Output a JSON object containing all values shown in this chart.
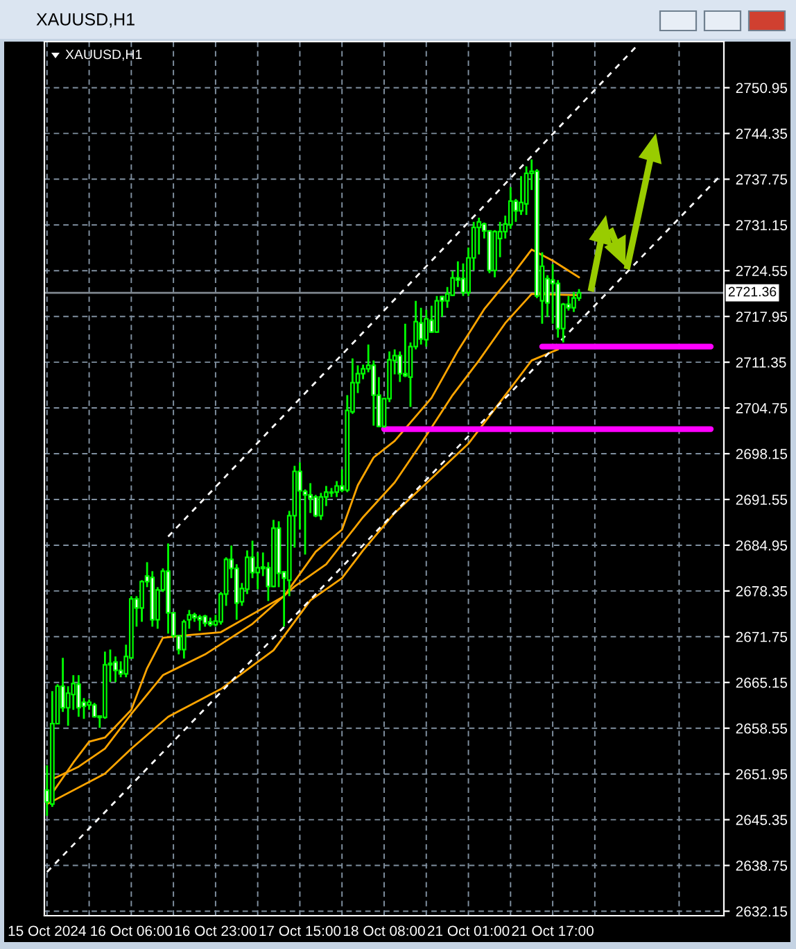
{
  "chart_data": {
    "type": "candlestick",
    "title": "XAUUSD,H1",
    "subtitle": "XAUUSD,H1",
    "categories": [
      "15 Oct 2024",
      null,
      null,
      null,
      null,
      null,
      null,
      null,
      null,
      null,
      null,
      null,
      null,
      null,
      null,
      null,
      "16 Oct 06:00",
      null,
      null,
      null,
      null,
      null,
      null,
      null,
      null,
      null,
      null,
      null,
      null,
      null,
      null,
      null,
      "16 Oct 23:00",
      null,
      null,
      null,
      null,
      null,
      null,
      null,
      null,
      null,
      null,
      null,
      null,
      null,
      null,
      null,
      "17 Oct 15:00",
      null,
      null,
      null,
      null,
      null,
      null,
      null,
      null,
      null,
      null,
      null,
      null,
      null,
      null,
      null,
      "18 Oct 08:00",
      null,
      null,
      null,
      null,
      null,
      null,
      null,
      null,
      null,
      null,
      null,
      null,
      null,
      null,
      null,
      "21 Oct 01:00",
      null,
      null,
      null,
      null,
      null,
      null,
      null,
      null,
      null,
      null,
      null,
      null,
      null,
      null,
      null,
      "21 Oct 17:00",
      null,
      null,
      null,
      null,
      null,
      null,
      null,
      null,
      null,
      null,
      null,
      null,
      null,
      null,
      null,
      null,
      null,
      null,
      null,
      null,
      null,
      null,
      null,
      null,
      null,
      null,
      null,
      null,
      null,
      null,
      null,
      null
    ],
    "ohlc": [
      [
        2649.6,
        2653.2,
        2645.9,
        2647.9
      ],
      [
        2647.6,
        2663.9,
        2647.2,
        2659.2
      ],
      [
        2659.2,
        2664.9,
        2659.2,
        2664.6
      ],
      [
        2664.6,
        2668.7,
        2660.9,
        2661.5
      ],
      [
        2661.5,
        2664.6,
        2658.9,
        2663.6
      ],
      [
        2663.4,
        2666.2,
        2661.2,
        2665.0
      ],
      [
        2664.9,
        2666.2,
        2660.2,
        2661.5
      ],
      [
        2662.3,
        2662.9,
        2659.9,
        2661.7
      ],
      [
        2661.9,
        2662.7,
        2661.2,
        2662.3
      ],
      [
        2661.9,
        2662.2,
        2660.1,
        2660.2
      ],
      [
        2660.3,
        2660.3,
        2658.6,
        2660.1
      ],
      [
        2660.1,
        2669.6,
        2659.9,
        2667.7
      ],
      [
        2667.7,
        2669.9,
        2665.2,
        2667.9
      ],
      [
        2668.1,
        2668.9,
        2665.2,
        2666.9
      ],
      [
        2666.9,
        2668.2,
        2665.9,
        2666.4
      ],
      [
        2666.4,
        2670.6,
        2665.9,
        2668.9
      ],
      [
        2668.7,
        2677.6,
        2668.6,
        2677.2
      ],
      [
        2677.2,
        2677.6,
        2673.2,
        2675.9
      ],
      [
        2675.9,
        2679.9,
        2673.9,
        2679.7
      ],
      [
        2680.5,
        2682.5,
        2678.9,
        2679.7
      ],
      [
        2680.3,
        2681.2,
        2673.2,
        2674.2
      ],
      [
        2674.2,
        2678.9,
        2672.9,
        2678.5
      ],
      [
        2678.5,
        2681.6,
        2678.2,
        2681.2
      ],
      [
        2681.2,
        2685.2,
        2672.2,
        2675.2
      ],
      [
        2675.2,
        2675.2,
        2671.6,
        2671.9
      ],
      [
        2671.9,
        2671.9,
        2669.2,
        2669.9
      ],
      [
        2669.9,
        2674.2,
        2668.6,
        2673.9
      ],
      [
        2674.2,
        2675.6,
        2672.9,
        2674.9
      ],
      [
        2674.9,
        2675.2,
        2673.9,
        2674.5
      ],
      [
        2674.6,
        2674.9,
        2672.6,
        2674.2
      ],
      [
        2674.7,
        2674.9,
        2673.2,
        2673.7
      ],
      [
        2673.9,
        2674.5,
        2673.2,
        2673.5
      ],
      [
        2673.5,
        2674.9,
        2673.2,
        2674.0
      ],
      [
        2673.9,
        2678.2,
        2673.5,
        2677.9
      ],
      [
        2677.9,
        2683.2,
        2676.2,
        2682.9
      ],
      [
        2682.9,
        2684.9,
        2680.2,
        2681.6
      ],
      [
        2681.6,
        2682.2,
        2674.2,
        2676.6
      ],
      [
        2676.8,
        2679.5,
        2676.2,
        2678.7
      ],
      [
        2678.6,
        2684.2,
        2677.9,
        2683.2
      ],
      [
        2683.2,
        2685.6,
        2680.2,
        2681.0
      ],
      [
        2681.0,
        2683.9,
        2678.6,
        2681.7
      ],
      [
        2681.8,
        2683.9,
        2680.5,
        2681.6
      ],
      [
        2681.7,
        2682.5,
        2676.9,
        2679.0
      ],
      [
        2679.0,
        2688.6,
        2678.9,
        2687.4
      ],
      [
        2687.4,
        2688.4,
        2678.9,
        2680.9
      ],
      [
        2681.1,
        2681.2,
        2673.2,
        2680.2
      ],
      [
        2679.9,
        2689.9,
        2677.6,
        2689.2
      ],
      [
        2689.2,
        2696.4,
        2684.6,
        2695.6
      ],
      [
        2695.6,
        2696.9,
        2687.2,
        2692.8
      ],
      [
        2692.7,
        2693.0,
        2683.6,
        2692.2
      ],
      [
        2692.2,
        2693.9,
        2689.6,
        2691.7
      ],
      [
        2691.9,
        2692.2,
        2689.0,
        2689.2
      ],
      [
        2689.2,
        2692.5,
        2688.6,
        2691.9
      ],
      [
        2691.9,
        2693.5,
        2690.6,
        2692.6
      ],
      [
        2692.6,
        2693.2,
        2691.9,
        2692.5
      ],
      [
        2692.6,
        2694.2,
        2691.9,
        2693.5
      ],
      [
        2693.5,
        2695.9,
        2692.6,
        2692.9
      ],
      [
        2692.9,
        2706.6,
        2692.6,
        2704.4
      ],
      [
        2704.2,
        2711.9,
        2703.9,
        2708.4
      ],
      [
        2708.4,
        2710.9,
        2706.9,
        2709.7
      ],
      [
        2709.7,
        2711.0,
        2708.9,
        2710.4
      ],
      [
        2710.4,
        2713.9,
        2709.9,
        2710.9
      ],
      [
        2710.9,
        2711.6,
        2702.2,
        2706.6
      ],
      [
        2706.6,
        2709.2,
        2702.0,
        2702.1
      ],
      [
        2702.1,
        2706.2,
        2701.9,
        2706.1
      ],
      [
        2706.1,
        2712.9,
        2705.6,
        2711.7
      ],
      [
        2711.6,
        2713.2,
        2709.6,
        2712.3
      ],
      [
        2712.3,
        2712.9,
        2708.5,
        2709.7
      ],
      [
        2709.7,
        2716.9,
        2709.2,
        2709.4
      ],
      [
        2709.2,
        2714.2,
        2704.9,
        2713.6
      ],
      [
        2713.6,
        2720.2,
        2713.2,
        2717.2
      ],
      [
        2717.0,
        2719.2,
        2713.9,
        2714.7
      ],
      [
        2714.6,
        2718.9,
        2713.6,
        2717.6
      ],
      [
        2717.4,
        2719.5,
        2715.6,
        2715.7
      ],
      [
        2715.7,
        2720.9,
        2715.6,
        2720.2
      ],
      [
        2720.8,
        2720.9,
        2717.9,
        2720.2
      ],
      [
        2720.2,
        2722.2,
        2719.2,
        2721.2
      ],
      [
        2721.0,
        2724.5,
        2720.9,
        2723.5
      ],
      [
        2723.5,
        2725.9,
        2722.2,
        2723.2
      ],
      [
        2723.4,
        2725.6,
        2720.9,
        2721.4
      ],
      [
        2721.4,
        2727.9,
        2720.9,
        2726.4
      ],
      [
        2726.4,
        2731.6,
        2724.6,
        2730.8
      ],
      [
        2730.8,
        2732.2,
        2726.9,
        2731.6
      ],
      [
        2731.3,
        2731.5,
        2729.2,
        2730.3
      ],
      [
        2730.3,
        2730.3,
        2724.2,
        2724.6
      ],
      [
        2724.6,
        2730.4,
        2723.6,
        2730.2
      ],
      [
        2729.2,
        2731.6,
        2726.5,
        2730.2
      ],
      [
        2730.2,
        2732.5,
        2729.2,
        2731.3
      ],
      [
        2731.2,
        2736.6,
        2730.6,
        2734.6
      ],
      [
        2734.6,
        2734.9,
        2731.6,
        2733.2
      ],
      [
        2733.2,
        2738.2,
        2732.6,
        2734.4
      ],
      [
        2734.2,
        2739.6,
        2732.6,
        2738.6
      ],
      [
        2738.6,
        2740.6,
        2736.2,
        2738.9
      ],
      [
        2738.9,
        2739.2,
        2720.6,
        2720.9
      ],
      [
        2720.2,
        2727.2,
        2716.9,
        2725.2
      ],
      [
        2723.4,
        2723.9,
        2717.9,
        2719.9
      ],
      [
        2723.2,
        2725.5,
        2716.9,
        2722.7
      ],
      [
        2722.7,
        2723.2,
        2714.9,
        2716.2
      ],
      [
        2716.2,
        2719.9,
        2714.2,
        2719.7
      ],
      [
        2719.7,
        2720.9,
        2718.8,
        2719.2
      ],
      [
        2719.2,
        2721.5,
        2718.6,
        2720.6
      ],
      [
        2720.6,
        2721.9,
        2720.2,
        2721.36
      ],
      null,
      null,
      null,
      null,
      null,
      null,
      null,
      null,
      null,
      null,
      null,
      null,
      null,
      null,
      null,
      null,
      null,
      null,
      null,
      null,
      null,
      null,
      null,
      null,
      null,
      null,
      null
    ],
    "series": [
      {
        "type": "line",
        "color": "#ffa500",
        "values": [
          null,
          2649.2,
          null,
          null,
          null,
          2653.6,
          null,
          null,
          2656.6,
          null,
          null,
          2657.2,
          null,
          null,
          null,
          null,
          2661.2,
          null,
          null,
          2667.2,
          null,
          null,
          2671.6,
          null,
          null,
          null,
          null,
          2672.0,
          null,
          null,
          null,
          null,
          null,
          2672.4,
          null,
          null,
          null,
          null,
          null,
          null,
          null,
          null,
          null,
          null,
          null,
          2677.6,
          null,
          null,
          null,
          null,
          null,
          2684.0,
          null,
          null,
          null,
          null,
          2687.2,
          null,
          null,
          2693.6,
          null,
          null,
          2697.6,
          null,
          null,
          null,
          2700.0,
          null,
          null,
          null,
          null,
          null,
          null,
          2706.2,
          null,
          null,
          null,
          null,
          2713.0,
          null,
          null,
          null,
          null,
          2719.0,
          null,
          null,
          null,
          null,
          2723.6,
          null,
          null,
          null,
          2727.6,
          null,
          null,
          null,
          2726.0,
          null,
          null,
          null,
          null,
          2723.6,
          null,
          null,
          null,
          null,
          null,
          null,
          null,
          null,
          null,
          null,
          null,
          null,
          null,
          null,
          null,
          null,
          null,
          null,
          null,
          null,
          null,
          null,
          null,
          null,
          null,
          null,
          null
        ]
      },
      {
        "type": "line",
        "color": "#ffa500",
        "values": [
          null,
          2651.2,
          null,
          null,
          null,
          null,
          2653.0,
          null,
          null,
          null,
          null,
          2655.6,
          null,
          null,
          null,
          null,
          2660.6,
          null,
          null,
          null,
          null,
          null,
          2666.2,
          null,
          null,
          null,
          null,
          null,
          null,
          null,
          2669.2,
          null,
          null,
          null,
          null,
          null,
          null,
          null,
          null,
          2673.6,
          null,
          null,
          null,
          null,
          null,
          null,
          null,
          2679.0,
          null,
          null,
          null,
          null,
          null,
          2682.2,
          null,
          null,
          null,
          null,
          null,
          null,
          2689.0,
          null,
          null,
          null,
          null,
          null,
          2694.0,
          null,
          null,
          null,
          null,
          2699.6,
          null,
          null,
          null,
          null,
          null,
          2706.6,
          null,
          null,
          null,
          null,
          2711.6,
          null,
          null,
          null,
          null,
          2717.0,
          null,
          null,
          null,
          null,
          2721.2,
          null,
          null,
          null,
          null,
          null,
          null,
          null,
          null,
          2721.0,
          null,
          null,
          null,
          null,
          null,
          null,
          null,
          null,
          null,
          null,
          null,
          null,
          null,
          null,
          null,
          null,
          null,
          null,
          null,
          null,
          null,
          null,
          null,
          null,
          null,
          null,
          null
        ]
      },
      {
        "type": "line",
        "color": "#ffa500",
        "values": [
          2647.6,
          null,
          null,
          null,
          null,
          null,
          null,
          null,
          null,
          null,
          null,
          2652.0,
          null,
          null,
          null,
          null,
          2655.6,
          null,
          null,
          null,
          null,
          null,
          null,
          2660.2,
          null,
          null,
          null,
          null,
          null,
          null,
          null,
          null,
          null,
          2664.2,
          null,
          null,
          null,
          null,
          null,
          null,
          null,
          null,
          null,
          2669.8,
          null,
          null,
          null,
          null,
          null,
          null,
          2677.0,
          null,
          null,
          null,
          null,
          null,
          2680.2,
          null,
          null,
          null,
          2684.2,
          null,
          null,
          null,
          null,
          null,
          2689.6,
          null,
          null,
          null,
          null,
          null,
          null,
          null,
          null,
          null,
          null,
          null,
          null,
          null,
          2699.6,
          null,
          null,
          null,
          null,
          null,
          2705.6,
          null,
          null,
          null,
          null,
          null,
          2711.6,
          null,
          null,
          null,
          null,
          2713.2,
          null,
          null,
          null,
          null,
          null,
          null,
          null,
          null,
          null,
          null,
          null,
          null,
          null,
          null,
          null,
          null,
          null,
          null,
          null,
          null,
          null,
          null,
          null,
          null,
          null,
          null,
          null,
          null,
          null,
          null,
          null
        ]
      },
      {
        "type": "line",
        "color": "#ffffff",
        "line_style": "dashed",
        "values": [
          null,
          null,
          null,
          null,
          null,
          null,
          null,
          null,
          null,
          null,
          null,
          null,
          null,
          null,
          null,
          null,
          null,
          null,
          null,
          null,
          null,
          null,
          null,
          2686.2,
          null,
          null,
          null,
          null,
          null,
          null,
          null,
          null,
          null,
          null,
          null,
          null,
          null,
          null,
          null,
          null,
          null,
          null,
          null,
          null,
          null,
          null,
          null,
          null,
          null,
          null,
          null,
          null,
          null,
          null,
          null,
          null,
          null,
          null,
          null,
          null,
          null,
          null,
          null,
          null,
          null,
          null,
          null,
          null,
          null,
          null,
          null,
          null,
          null,
          null,
          null,
          null,
          null,
          null,
          null,
          null,
          null,
          null,
          null,
          null,
          null,
          null,
          null,
          null,
          null,
          null,
          null,
          null,
          null,
          null,
          null,
          null,
          null,
          null,
          null,
          null,
          null,
          null,
          null,
          null,
          null,
          null,
          null,
          null,
          null,
          null,
          null,
          null,
          2757.0,
          null,
          null,
          null,
          null,
          null,
          null,
          null,
          null,
          null,
          null,
          null,
          null,
          null,
          null,
          null,
          null
        ]
      },
      {
        "type": "line",
        "color": "#ffffff",
        "line_style": "dashed",
        "values": [
          2637.8,
          null,
          null,
          null,
          null,
          null,
          null,
          null,
          null,
          null,
          null,
          null,
          null,
          null,
          null,
          null,
          null,
          null,
          null,
          null,
          null,
          null,
          null,
          null,
          null,
          null,
          null,
          null,
          null,
          null,
          null,
          null,
          null,
          null,
          null,
          null,
          null,
          null,
          null,
          null,
          null,
          null,
          null,
          null,
          null,
          null,
          null,
          null,
          null,
          null,
          null,
          null,
          null,
          null,
          null,
          null,
          null,
          null,
          null,
          null,
          null,
          null,
          null,
          null,
          null,
          null,
          null,
          null,
          null,
          null,
          null,
          null,
          null,
          null,
          null,
          null,
          null,
          null,
          null,
          null,
          null,
          null,
          null,
          null,
          null,
          null,
          null,
          null,
          null,
          null,
          null,
          null,
          null,
          null,
          null,
          null,
          null,
          null,
          null,
          null,
          null,
          null,
          null,
          null,
          null,
          null,
          null,
          null,
          null,
          null,
          null,
          null,
          null,
          null,
          null,
          null,
          null,
          null,
          null,
          null,
          null,
          null,
          null,
          null,
          null,
          null,
          null,
          null,
          2738.4
        ]
      },
      {
        "type": "line",
        "color": "#ff00ff",
        "values": [
          null,
          null,
          null,
          null,
          null,
          null,
          null,
          null,
          null,
          null,
          null,
          null,
          null,
          null,
          null,
          null,
          null,
          null,
          null,
          null,
          null,
          null,
          null,
          null,
          null,
          null,
          null,
          null,
          null,
          null,
          null,
          null,
          null,
          null,
          null,
          null,
          null,
          null,
          null,
          null,
          null,
          null,
          null,
          null,
          null,
          null,
          null,
          null,
          null,
          null,
          null,
          null,
          null,
          null,
          null,
          null,
          null,
          null,
          null,
          null,
          null,
          null,
          null,
          null,
          2701.7,
          null,
          null,
          null,
          null,
          null,
          null,
          null,
          null,
          null,
          null,
          null,
          null,
          null,
          null,
          null,
          null,
          null,
          null,
          null,
          null,
          null,
          null,
          null,
          null,
          null,
          null,
          null,
          null,
          null,
          null,
          null,
          null,
          null,
          null,
          null,
          null,
          null,
          null,
          null,
          null,
          null,
          null,
          null,
          null,
          null,
          null,
          null,
          null,
          null,
          null,
          null,
          null,
          null,
          null,
          null,
          null,
          null,
          null,
          null,
          null,
          null,
          2701.7,
          null,
          null
        ]
      },
      {
        "type": "line",
        "color": "#ff00ff",
        "values": [
          null,
          null,
          null,
          null,
          null,
          null,
          null,
          null,
          null,
          null,
          null,
          null,
          null,
          null,
          null,
          null,
          null,
          null,
          null,
          null,
          null,
          null,
          null,
          null,
          null,
          null,
          null,
          null,
          null,
          null,
          null,
          null,
          null,
          null,
          null,
          null,
          null,
          null,
          null,
          null,
          null,
          null,
          null,
          null,
          null,
          null,
          null,
          null,
          null,
          null,
          null,
          null,
          null,
          null,
          null,
          null,
          null,
          null,
          null,
          null,
          null,
          null,
          null,
          null,
          null,
          null,
          null,
          null,
          null,
          null,
          null,
          null,
          null,
          null,
          null,
          null,
          null,
          null,
          null,
          null,
          null,
          null,
          null,
          null,
          null,
          null,
          null,
          null,
          null,
          null,
          null,
          null,
          null,
          null,
          2713.6,
          null,
          null,
          null,
          null,
          null,
          null,
          null,
          null,
          null,
          null,
          null,
          null,
          null,
          null,
          null,
          null,
          null,
          null,
          null,
          null,
          null,
          null,
          null,
          null,
          null,
          null,
          null,
          null,
          null,
          null,
          null,
          2713.6,
          null,
          null
        ]
      }
    ],
    "ref_lines": [
      {
        "axis": "y",
        "value": 2721.36,
        "label": "2721.36",
        "color": "#808890"
      }
    ],
    "ylim": [
      2631.5,
      2757.6
    ],
    "yticks": [
      2632.15,
      2638.75,
      2645.35,
      2651.95,
      2658.55,
      2665.15,
      2671.75,
      2678.35,
      2684.95,
      2691.55,
      2698.15,
      2704.75,
      2711.35,
      2717.95,
      2724.55,
      2731.15,
      2737.75,
      2744.35,
      2750.95
    ],
    "grid": true
  }
}
